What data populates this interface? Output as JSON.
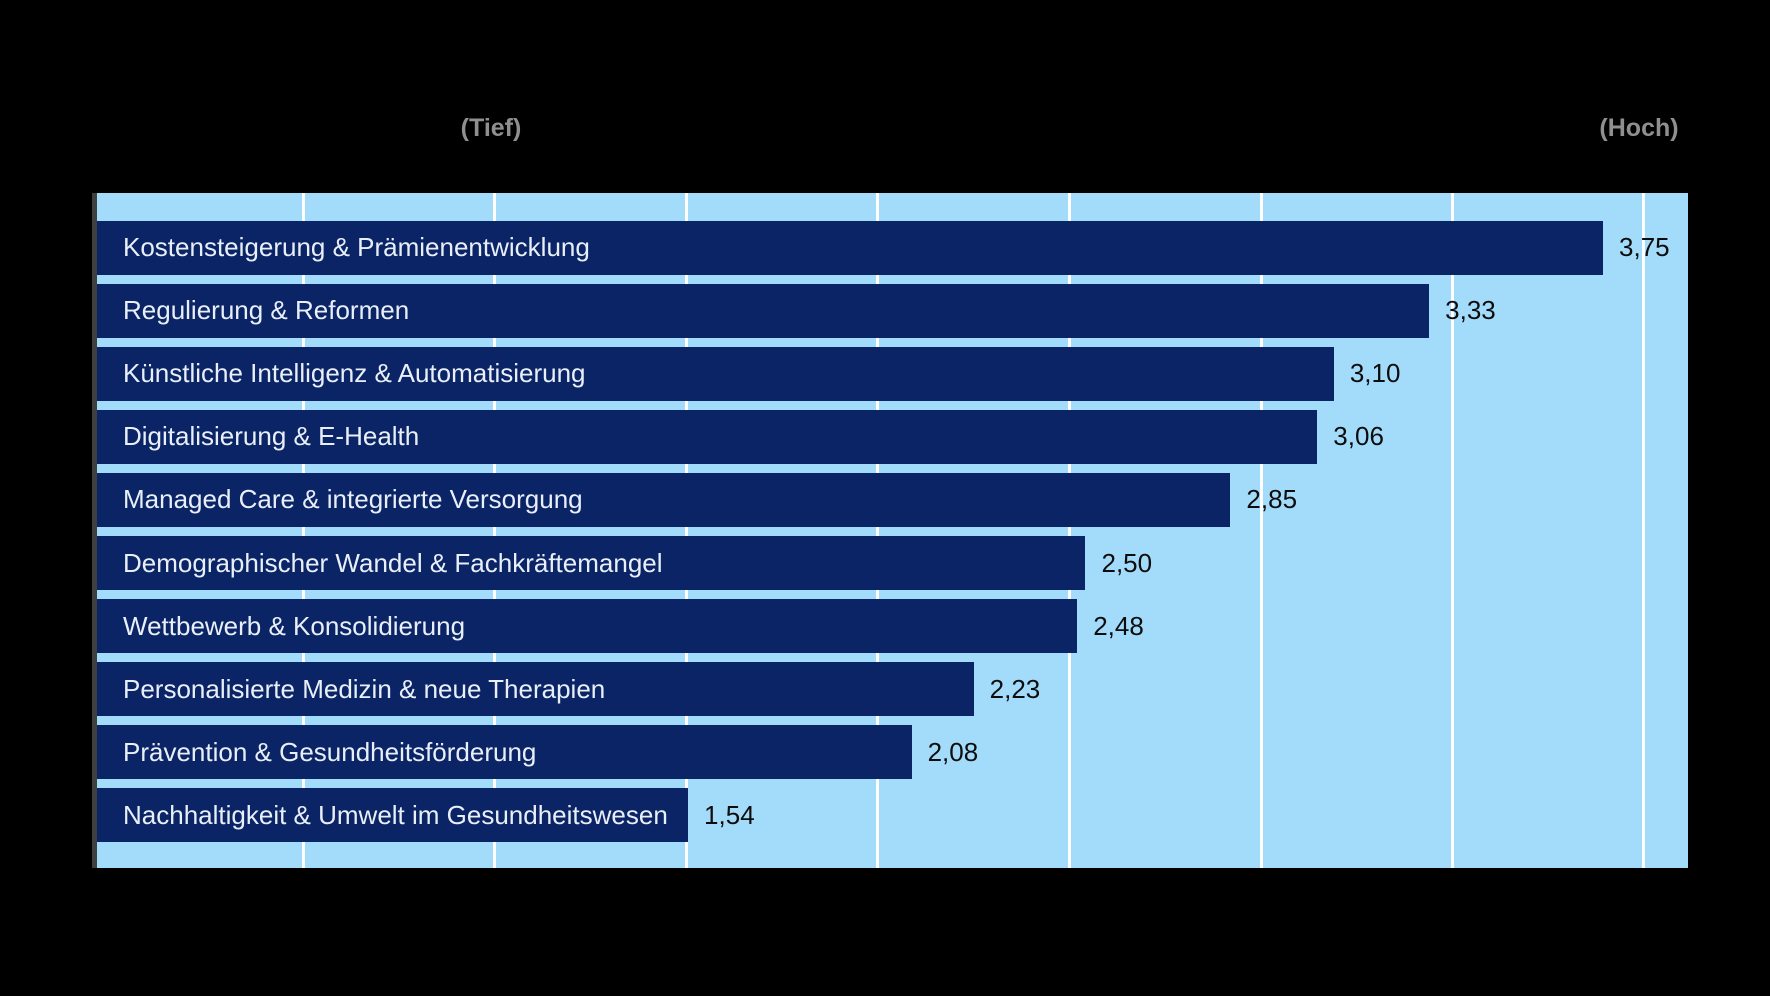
{
  "chart_data": {
    "type": "bar",
    "orientation": "horizontal",
    "title": "",
    "categories": [
      "Kostensteigerung & Prämienentwicklung",
      "Regulierung & Reformen",
      "Künstliche Intelligenz & Automatisierung",
      "Digitalisierung & E-Health",
      "Managed Care & integrierte Versorgung",
      "Demographischer Wandel & Fachkräftemangel",
      "Wettbewerb & Konsolidierung",
      "Personalisierte Medizin & neue Therapien",
      "Prävention & Gesundheitsförderung",
      "Nachhaltigkeit & Umwelt im Gesundheitswesen"
    ],
    "values": [
      3.75,
      3.33,
      3.1,
      3.06,
      2.85,
      2.5,
      2.48,
      2.23,
      2.08,
      1.54
    ],
    "value_labels": [
      "3,75",
      "3,33",
      "3,10",
      "3,06",
      "2,85",
      "2,50",
      "2,48",
      "2,23",
      "2,08",
      "1,54"
    ],
    "xlabel": "",
    "ylabel": "",
    "xlim": [
      0.11,
      3.96
    ],
    "grid": true,
    "gridline_count": 8,
    "legend_position": "none",
    "axis_annotations": {
      "low": "(Tief)",
      "high": "(Hoch)"
    }
  },
  "colors": {
    "background": "#000000",
    "plot_background": "#A3DBFA",
    "bar": "#0A2466",
    "bar_label": "#E9EFF8",
    "value_label": "#0D0D0D",
    "endpoint_label": "#8F8F8F",
    "gridline": "#FFFFFF",
    "axis_line": "#3F3F3F"
  }
}
